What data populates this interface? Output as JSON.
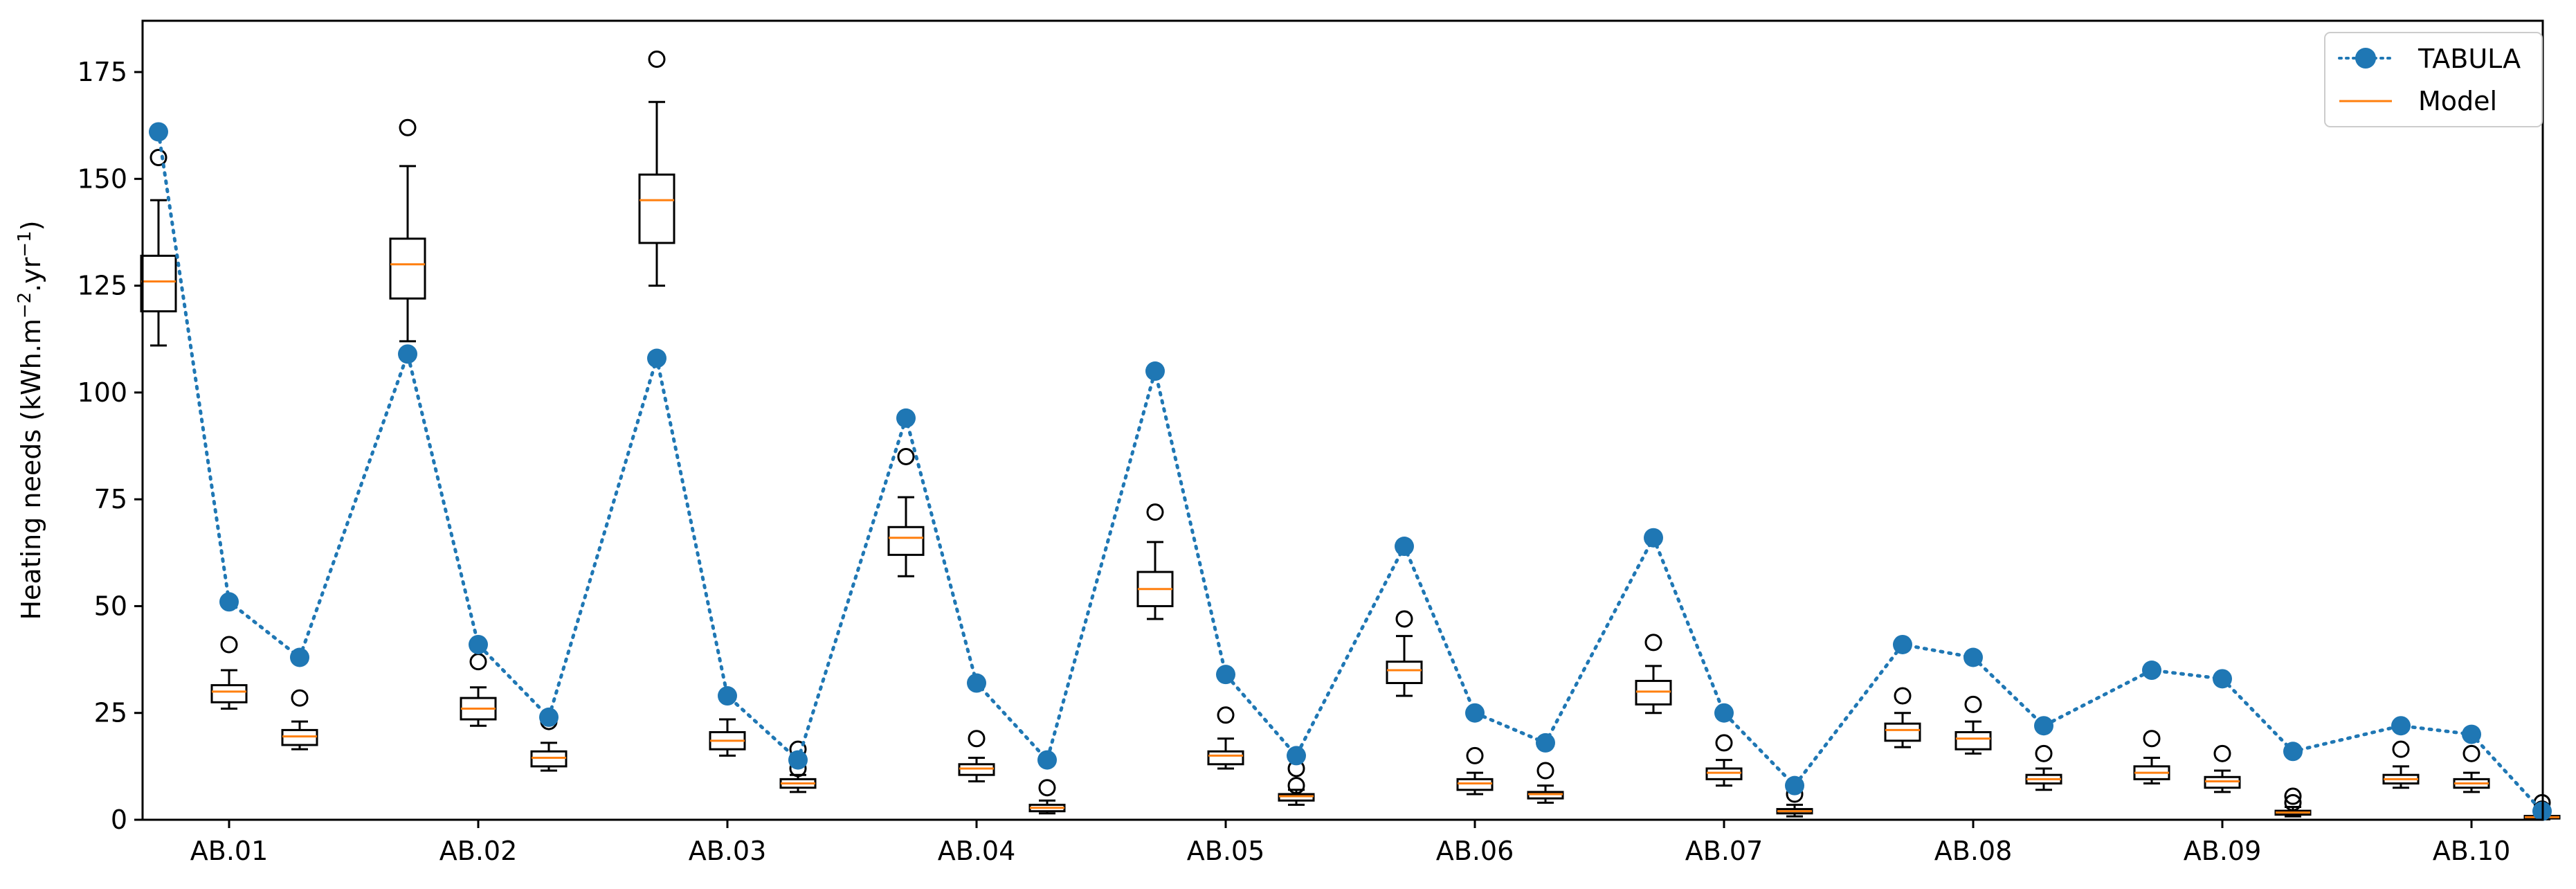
{
  "chart_data": {
    "type": "box",
    "ylabel": "Heating needs (kWh.m",
    "ylabel_sup1": "−2",
    "ylabel_mid": ".yr",
    "ylabel_sup2": "−1",
    "ylabel_end": ")",
    "ylim": [
      0,
      187
    ],
    "yticks": [
      0,
      25,
      50,
      75,
      100,
      125,
      150,
      175
    ],
    "categories": [
      "AB.01",
      "AB.02",
      "AB.03",
      "AB.04",
      "AB.05",
      "AB.06",
      "AB.07",
      "AB.08",
      "AB.09",
      "AB.10"
    ],
    "legend": {
      "position": "top-right",
      "tabula": "TABULA",
      "model": "Model"
    },
    "colors": {
      "tabula": "#1f77b4",
      "median": "#ff7f0e",
      "box": "#000000"
    },
    "series": [
      {
        "name": "TABULA",
        "style": "dotted-line-with-markers",
        "groups": [
          [
            161,
            51,
            38
          ],
          [
            109,
            41,
            24
          ],
          [
            108,
            29,
            14
          ],
          [
            94,
            32,
            14
          ],
          [
            105,
            34,
            15
          ],
          [
            64,
            25,
            18
          ],
          [
            66,
            25,
            8
          ],
          [
            41,
            38,
            22
          ],
          [
            35,
            33,
            16
          ],
          [
            22,
            20,
            2
          ]
        ]
      },
      {
        "name": "Model",
        "style": "boxplot",
        "groups": [
          [
            {
              "whislo": 111,
              "q1": 119,
              "med": 126,
              "q3": 132,
              "whishi": 145,
              "fliers": [
                155
              ]
            },
            {
              "whislo": 26,
              "q1": 27.5,
              "med": 30,
              "q3": 31.5,
              "whishi": 35,
              "fliers": [
                41
              ]
            },
            {
              "whislo": 16.5,
              "q1": 17.5,
              "med": 19.5,
              "q3": 21,
              "whishi": 23,
              "fliers": [
                28.5
              ]
            }
          ],
          [
            {
              "whislo": 112,
              "q1": 122,
              "med": 130,
              "q3": 136,
              "whishi": 153,
              "fliers": [
                162
              ]
            },
            {
              "whislo": 22,
              "q1": 23.5,
              "med": 26,
              "q3": 28.5,
              "whishi": 31,
              "fliers": [
                37
              ]
            },
            {
              "whislo": 11.5,
              "q1": 12.5,
              "med": 14.5,
              "q3": 16,
              "whishi": 18,
              "fliers": [
                23
              ]
            }
          ],
          [
            {
              "whislo": 125,
              "q1": 135,
              "med": 145,
              "q3": 151,
              "whishi": 168,
              "fliers": [
                178
              ]
            },
            {
              "whislo": 15,
              "q1": 16.5,
              "med": 18.5,
              "q3": 20.5,
              "whishi": 23.5,
              "fliers": [
                29
              ]
            },
            {
              "whislo": 6.5,
              "q1": 7.5,
              "med": 8.5,
              "q3": 9.5,
              "whishi": 10.5,
              "fliers": [
                12,
                16.5
              ]
            }
          ],
          [
            {
              "whislo": 57,
              "q1": 62,
              "med": 66,
              "q3": 68.5,
              "whishi": 75.5,
              "fliers": [
                85
              ]
            },
            {
              "whislo": 9,
              "q1": 10.5,
              "med": 12,
              "q3": 13,
              "whishi": 14.5,
              "fliers": [
                19
              ]
            },
            {
              "whislo": 1.5,
              "q1": 2,
              "med": 2.8,
              "q3": 3.5,
              "whishi": 4.5,
              "fliers": [
                7.5
              ]
            }
          ],
          [
            {
              "whislo": 47,
              "q1": 50,
              "med": 54,
              "q3": 58,
              "whishi": 65,
              "fliers": [
                72
              ]
            },
            {
              "whislo": 12,
              "q1": 13,
              "med": 15,
              "q3": 16,
              "whishi": 19,
              "fliers": [
                24.5
              ]
            },
            {
              "whislo": 3.5,
              "q1": 4.5,
              "med": 5.5,
              "q3": 6,
              "whishi": 7,
              "fliers": [
                8,
                12
              ]
            }
          ],
          [
            {
              "whislo": 29,
              "q1": 32,
              "med": 35,
              "q3": 37,
              "whishi": 43,
              "fliers": [
                47
              ]
            },
            {
              "whislo": 6,
              "q1": 7,
              "med": 8.5,
              "q3": 9.5,
              "whishi": 11,
              "fliers": [
                15
              ]
            },
            {
              "whislo": 4,
              "q1": 5,
              "med": 6,
              "q3": 6.5,
              "whishi": 8,
              "fliers": [
                11.5
              ]
            }
          ],
          [
            {
              "whislo": 25,
              "q1": 27,
              "med": 30,
              "q3": 32.5,
              "whishi": 36,
              "fliers": [
                41.5
              ]
            },
            {
              "whislo": 8,
              "q1": 9.5,
              "med": 11,
              "q3": 12,
              "whishi": 14,
              "fliers": [
                18
              ]
            },
            {
              "whislo": 0.8,
              "q1": 1.5,
              "med": 2,
              "q3": 2.5,
              "whishi": 3.5,
              "fliers": [
                6
              ]
            }
          ],
          [
            {
              "whislo": 17,
              "q1": 18.5,
              "med": 21,
              "q3": 22.5,
              "whishi": 25,
              "fliers": [
                29
              ]
            },
            {
              "whislo": 15.5,
              "q1": 16.5,
              "med": 19,
              "q3": 20.5,
              "whishi": 23,
              "fliers": [
                27
              ]
            },
            {
              "whislo": 7,
              "q1": 8.5,
              "med": 9.5,
              "q3": 10.5,
              "whishi": 12,
              "fliers": [
                15.5
              ]
            }
          ],
          [
            {
              "whislo": 8.5,
              "q1": 9.5,
              "med": 11,
              "q3": 12.5,
              "whishi": 14.5,
              "fliers": [
                19
              ]
            },
            {
              "whislo": 6.5,
              "q1": 7.5,
              "med": 9,
              "q3": 10,
              "whishi": 11.5,
              "fliers": [
                15.5
              ]
            },
            {
              "whislo": 0.8,
              "q1": 1.2,
              "med": 1.7,
              "q3": 2.1,
              "whishi": 3,
              "fliers": [
                4,
                5.5
              ]
            }
          ],
          [
            {
              "whislo": 7.5,
              "q1": 8.5,
              "med": 9.5,
              "q3": 10.5,
              "whishi": 12.5,
              "fliers": [
                16.5
              ]
            },
            {
              "whislo": 6.5,
              "q1": 7.5,
              "med": 8.5,
              "q3": 9.5,
              "whishi": 11,
              "fliers": [
                15.5
              ]
            },
            {
              "whislo": 0.1,
              "q1": 0.3,
              "med": 0.6,
              "q3": 0.9,
              "whishi": 1.5,
              "fliers": [
                2.5,
                4
              ]
            }
          ]
        ]
      }
    ]
  }
}
